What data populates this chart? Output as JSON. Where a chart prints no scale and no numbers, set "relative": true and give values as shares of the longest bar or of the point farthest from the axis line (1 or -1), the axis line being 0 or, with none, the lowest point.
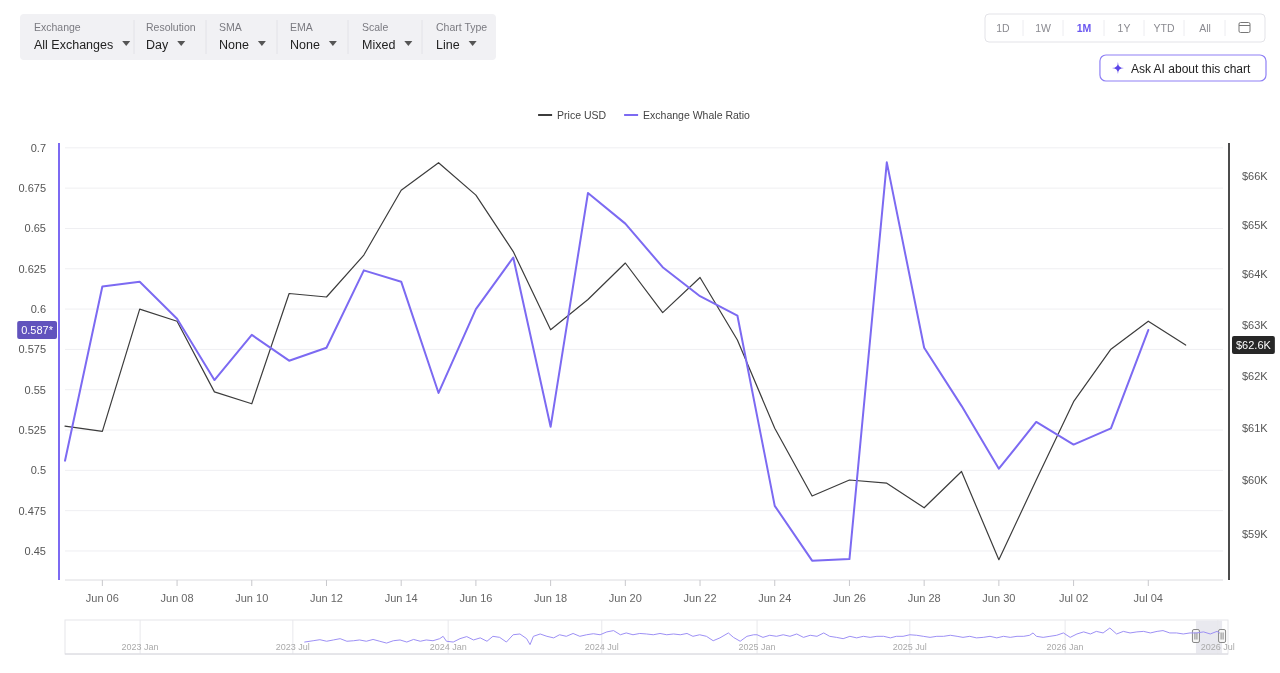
{
  "chart_data": [
    {
      "type": "other",
      "annotations": [
        "Exchange",
        "All Exchanges",
        "Resolution",
        "Day",
        "SMA",
        "None",
        "EMA",
        "None",
        "Scale",
        "Mixed",
        "Chart Type",
        "Line",
        "1D",
        "1W",
        "1M",
        "1Y",
        "YTD",
        "All",
        "Ask AI about this chart"
      ]
    },
    {
      "type": "line",
      "legend": "top",
      "grid": "y",
      "log": "y2",
      "x": [
        "--06-05",
        "--06-06",
        "--06-07",
        "--06-08",
        "--06-09",
        "--06-10",
        "--06-11",
        "--06-12",
        "--06-13",
        "--06-14",
        "--06-15",
        "--06-16",
        "--06-17",
        "--06-18",
        "--06-19",
        "--06-20",
        "--06-21",
        "--06-22",
        "--06-23",
        "--06-24",
        "--06-25",
        "--06-26",
        "--06-27",
        "--06-28",
        "--06-29",
        "--06-30",
        "--07-01",
        "--07-02",
        "--07-03",
        "--07-04",
        "--07-05"
      ],
      "xlim": [
        "--06-05",
        "--07-06"
      ],
      "xticks": [
        {
          "value": "--06-06",
          "label": "Jun 06"
        },
        {
          "value": "--06-08",
          "label": "Jun 08"
        },
        {
          "value": "--06-10",
          "label": "Jun 10"
        },
        {
          "value": "--06-12",
          "label": "Jun 12"
        },
        {
          "value": "--06-14",
          "label": "Jun 14"
        },
        {
          "value": "--06-16",
          "label": "Jun 16"
        },
        {
          "value": "--06-18",
          "label": "Jun 18"
        },
        {
          "value": "--06-20",
          "label": "Jun 20"
        },
        {
          "value": "--06-22",
          "label": "Jun 22"
        },
        {
          "value": "--06-24",
          "label": "Jun 24"
        },
        {
          "value": "--06-26",
          "label": "Jun 26"
        },
        {
          "value": "--06-28",
          "label": "Jun 28"
        },
        {
          "value": "--06-30",
          "label": "Jun 30"
        },
        {
          "value": "--07-02",
          "label": "Jul 02"
        },
        {
          "value": "--07-04",
          "label": "Jul 04"
        }
      ],
      "ylim": [
        0.432,
        0.703
      ],
      "yticks": [
        0.45,
        0.475,
        0.5,
        0.525,
        0.55,
        0.575,
        0.6,
        0.625,
        0.65,
        0.675,
        0.7
      ],
      "y2lim": [
        58160,
        66690
      ],
      "y2ticks": [
        {
          "value": 59000,
          "label": "$59K"
        },
        {
          "value": 60000,
          "label": "$60K"
        },
        {
          "value": 61000,
          "label": "$61K"
        },
        {
          "value": 62000,
          "label": "$62K"
        },
        {
          "value": 63000,
          "label": "$63K"
        },
        {
          "value": 64000,
          "label": "$64K"
        },
        {
          "value": 65000,
          "label": "$65K"
        },
        {
          "value": 66000,
          "label": "$66K"
        }
      ],
      "series": [
        {
          "name": "Price USD",
          "color": "#3c3c3c",
          "axis": "y2",
          "values": [
            61030,
            60930,
            63310,
            63070,
            61690,
            61460,
            63620,
            63550,
            64390,
            65710,
            66280,
            65610,
            64460,
            62900,
            63500,
            64230,
            63240,
            63940,
            62700,
            60990,
            59710,
            60010,
            59950,
            59490,
            60170,
            58530,
            60010,
            61500,
            62520,
            63070,
            62600
          ]
        },
        {
          "name": "Exchange Whale Ratio",
          "color": "#7c6af2",
          "values": [
            0.506,
            0.614,
            0.617,
            0.594,
            0.556,
            0.584,
            0.568,
            0.576,
            0.624,
            0.617,
            0.548,
            0.6,
            0.632,
            0.527,
            0.672,
            0.653,
            0.626,
            0.608,
            0.596,
            0.478,
            0.444,
            0.445,
            0.691,
            0.576,
            0.54,
            0.501,
            0.53,
            0.516,
            0.526,
            0.587,
            null
          ]
        }
      ],
      "annotations": [
        "0.587*",
        "$62.6K"
      ]
    },
    {
      "type": "line",
      "relative": true,
      "grid": "x",
      "tick_labels": "x",
      "x": [
        "2023-07-15",
        "2023-07-25",
        "2023-08-02",
        "2023-08-10",
        "2023-08-18",
        "2023-08-26",
        "2023-09-03",
        "2023-09-11",
        "2023-09-18",
        "2023-09-26",
        "2023-10-04",
        "2023-10-12",
        "2023-10-20",
        "2023-10-28",
        "2023-11-05",
        "2023-11-13",
        "2023-11-21",
        "2023-11-29",
        "2023-12-06",
        "2023-12-14",
        "2023-12-22",
        "2023-12-26",
        "2023-12-30",
        "2024-01-07",
        "2024-01-15",
        "2024-01-23",
        "2024-01-31",
        "2024-02-08",
        "2024-02-16",
        "2024-02-23",
        "2024-03-02",
        "2024-03-10",
        "2024-03-18",
        "2024-03-26",
        "2024-04-03",
        "2024-04-07",
        "2024-04-11",
        "2024-04-19",
        "2024-04-27",
        "2024-05-05",
        "2024-05-12",
        "2024-05-20",
        "2024-05-28",
        "2024-06-05",
        "2024-06-13",
        "2024-06-21",
        "2024-06-29",
        "2024-07-07",
        "2024-07-15",
        "2024-07-23",
        "2024-07-30",
        "2024-08-07",
        "2024-08-15",
        "2024-08-23",
        "2024-08-31",
        "2024-09-08",
        "2024-09-16",
        "2024-09-24",
        "2024-10-02",
        "2024-10-10",
        "2024-10-17",
        "2024-10-25",
        "2024-11-02",
        "2024-11-10",
        "2024-11-18",
        "2024-11-28",
        "2024-12-04",
        "2024-12-12",
        "2024-12-20",
        "2024-12-28",
        "2025-01-01",
        "2025-01-08",
        "2025-01-16",
        "2025-01-24",
        "2025-02-01",
        "2025-02-09",
        "2025-02-17",
        "2025-02-25",
        "2025-03-05",
        "2025-03-13",
        "2025-03-21",
        "2025-03-28",
        "2025-04-05",
        "2025-04-13",
        "2025-04-21",
        "2025-04-29",
        "2025-05-07",
        "2025-05-15",
        "2025-05-23",
        "2025-05-31",
        "2025-06-08",
        "2025-06-15",
        "2025-06-23",
        "2025-07-01",
        "2025-07-09",
        "2025-07-17",
        "2025-07-25",
        "2025-08-02",
        "2025-08-10",
        "2025-08-18",
        "2025-08-26",
        "2025-09-02",
        "2025-09-10",
        "2025-09-18",
        "2025-09-26",
        "2025-10-04",
        "2025-10-12",
        "2025-10-20",
        "2025-10-28",
        "2025-11-05",
        "2025-11-13",
        "2025-11-20",
        "2025-11-24",
        "2025-11-28",
        "2025-12-06",
        "2025-12-14",
        "2025-12-22",
        "2025-12-30",
        "2026-01-07",
        "2026-01-15",
        "2026-01-23",
        "2026-01-31",
        "2026-02-07",
        "2026-02-15",
        "2026-02-23",
        "2026-03-03",
        "2026-03-11",
        "2026-03-19",
        "2026-03-27",
        "2026-04-04",
        "2026-04-12",
        "2026-04-20",
        "2026-04-27",
        "2026-05-05",
        "2026-05-13",
        "2026-05-21",
        "2026-05-29",
        "2026-06-06",
        "2026-06-14",
        "2026-06-22",
        "2026-06-30",
        "2026-07-03"
      ],
      "xlim": [
        "2022-10-04",
        "2026-07-13"
      ],
      "xticks": [
        {
          "value": "2023-01",
          "label": "2023 Jan"
        },
        {
          "value": "2023-07",
          "label": "2023 Jul"
        },
        {
          "value": "2024-01",
          "label": "2024 Jan"
        },
        {
          "value": "2024-07",
          "label": "2024 Jul"
        },
        {
          "value": "2025-01",
          "label": "2025 Jan"
        },
        {
          "value": "2025-07",
          "label": "2025 Jul"
        },
        {
          "value": "2026-01",
          "label": "2026 Jan"
        },
        {
          "value": "2026-07",
          "label": "2026 Jul"
        }
      ],
      "bands": [
        {
          "axis": "x",
          "from": "2026-06-05",
          "to": "2026-07-06",
          "color": "#e9e9ef"
        }
      ],
      "series": [
        {
          "color": "#9d90f5",
          "values": [
            0.46,
            0.51,
            0.55,
            0.49,
            0.54,
            0.59,
            0.49,
            0.51,
            0.54,
            0.49,
            0.56,
            0.49,
            0.42,
            0.51,
            0.54,
            0.46,
            0.56,
            0.49,
            0.54,
            0.51,
            0.59,
            0.68,
            0.49,
            0.46,
            0.59,
            0.67,
            0.54,
            0.62,
            0.49,
            0.68,
            0.64,
            0.46,
            0.74,
            0.77,
            0.59,
            0.36,
            0.68,
            0.77,
            0.68,
            0.62,
            0.74,
            0.68,
            0.79,
            0.68,
            0.74,
            0.78,
            0.74,
            0.85,
            0.9,
            0.74,
            0.81,
            0.74,
            0.79,
            0.77,
            0.74,
            0.79,
            0.74,
            0.77,
            0.74,
            0.79,
            0.68,
            0.74,
            0.68,
            0.51,
            0.62,
            0.81,
            0.64,
            0.49,
            0.68,
            0.74,
            0.74,
            0.64,
            0.72,
            0.68,
            0.74,
            0.68,
            0.77,
            0.64,
            0.72,
            0.68,
            0.81,
            0.68,
            0.64,
            0.59,
            0.68,
            0.62,
            0.68,
            0.64,
            0.68,
            0.68,
            0.62,
            0.68,
            0.68,
            0.74,
            0.72,
            0.68,
            0.64,
            0.68,
            0.68,
            0.72,
            0.68,
            0.64,
            0.68,
            0.62,
            0.64,
            0.68,
            0.62,
            0.68,
            0.64,
            0.68,
            0.68,
            0.72,
            0.81,
            0.68,
            0.64,
            0.68,
            0.72,
            0.81,
            0.64,
            0.77,
            0.85,
            0.77,
            0.87,
            0.81,
            1,
            0.77,
            0.87,
            0.81,
            0.85,
            0.87,
            0.81,
            0.87,
            0.9,
            0.81,
            0.81,
            0.77,
            0.81,
            0.81,
            0.85,
            0.77,
            0.87,
            0.81
          ]
        }
      ]
    }
  ]
}
